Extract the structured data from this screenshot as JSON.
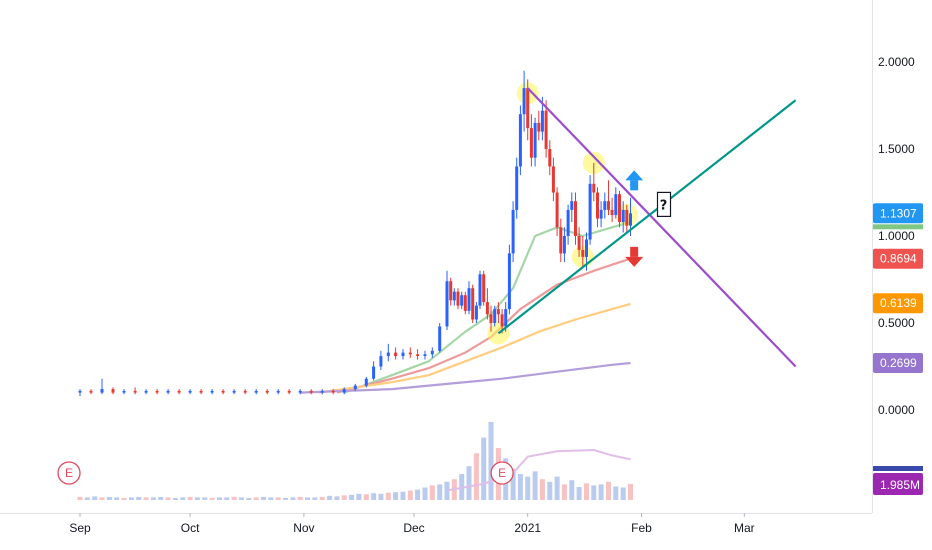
{
  "chart_data": {
    "type": "candlestick",
    "price_axis": {
      "ticks": [
        "2.0000",
        "1.5000",
        "1.0000",
        "0.5000",
        "0.0000"
      ],
      "tick_values": [
        2.0,
        1.5,
        1.0,
        0.5,
        0.0
      ],
      "ylim": [
        -0.35,
        2.2
      ]
    },
    "time_axis": {
      "ticks": [
        "Sep",
        "Oct",
        "Nov",
        "Dec",
        "2021",
        "Feb",
        "Mar"
      ],
      "tick_days": [
        0,
        30,
        61,
        91,
        122,
        153,
        181
      ]
    },
    "price_tags": [
      {
        "label": "1.1307",
        "value": 1.1307,
        "color": "#2196f3"
      },
      {
        "label": "0.8694",
        "value": 0.8694,
        "color": "#ef5350"
      },
      {
        "label": "0.6139",
        "value": 0.6139,
        "color": "#ff9800"
      },
      {
        "label": "0.2699",
        "value": 0.2699,
        "color": "#9575cd"
      }
    ],
    "volume_tag": {
      "label": "1.985M",
      "color": "#9c27b0"
    },
    "earnings_markers": [
      {
        "label": "E",
        "day": -3
      },
      {
        "label": "E",
        "day": 115
      }
    ],
    "annotation_box": {
      "label": "?"
    },
    "candles": [
      [
        0,
        0.1,
        0.12,
        0.08,
        0.11
      ],
      [
        3,
        0.11,
        0.12,
        0.09,
        0.1
      ],
      [
        6,
        0.1,
        0.18,
        0.09,
        0.12
      ],
      [
        9,
        0.12,
        0.13,
        0.09,
        0.1
      ],
      [
        12,
        0.1,
        0.12,
        0.09,
        0.11
      ],
      [
        15,
        0.11,
        0.13,
        0.09,
        0.1
      ],
      [
        18,
        0.1,
        0.12,
        0.09,
        0.11
      ],
      [
        21,
        0.11,
        0.12,
        0.09,
        0.1
      ],
      [
        24,
        0.1,
        0.12,
        0.09,
        0.11
      ],
      [
        27,
        0.11,
        0.12,
        0.09,
        0.1
      ],
      [
        30,
        0.1,
        0.12,
        0.09,
        0.11
      ],
      [
        33,
        0.11,
        0.12,
        0.09,
        0.1
      ],
      [
        36,
        0.1,
        0.12,
        0.09,
        0.11
      ],
      [
        39,
        0.11,
        0.12,
        0.09,
        0.1
      ],
      [
        42,
        0.1,
        0.12,
        0.09,
        0.11
      ],
      [
        45,
        0.11,
        0.12,
        0.09,
        0.1
      ],
      [
        48,
        0.1,
        0.12,
        0.09,
        0.11
      ],
      [
        51,
        0.11,
        0.12,
        0.09,
        0.1
      ],
      [
        54,
        0.1,
        0.12,
        0.09,
        0.11
      ],
      [
        57,
        0.11,
        0.12,
        0.09,
        0.1
      ],
      [
        60,
        0.1,
        0.12,
        0.09,
        0.11
      ],
      [
        63,
        0.11,
        0.12,
        0.09,
        0.1
      ],
      [
        66,
        0.1,
        0.12,
        0.09,
        0.11
      ],
      [
        69,
        0.11,
        0.12,
        0.09,
        0.1
      ],
      [
        72,
        0.1,
        0.13,
        0.09,
        0.12
      ],
      [
        75,
        0.12,
        0.15,
        0.11,
        0.14
      ],
      [
        78,
        0.14,
        0.19,
        0.13,
        0.18
      ],
      [
        80,
        0.18,
        0.28,
        0.17,
        0.25
      ],
      [
        82,
        0.25,
        0.34,
        0.23,
        0.31
      ],
      [
        84,
        0.31,
        0.38,
        0.28,
        0.33
      ],
      [
        86,
        0.33,
        0.36,
        0.29,
        0.31
      ],
      [
        88,
        0.31,
        0.35,
        0.29,
        0.33
      ],
      [
        90,
        0.33,
        0.36,
        0.3,
        0.32
      ],
      [
        92,
        0.32,
        0.35,
        0.29,
        0.31
      ],
      [
        94,
        0.31,
        0.34,
        0.29,
        0.32
      ],
      [
        96,
        0.32,
        0.36,
        0.3,
        0.34
      ],
      [
        98,
        0.34,
        0.5,
        0.33,
        0.48
      ],
      [
        100,
        0.48,
        0.8,
        0.46,
        0.74
      ],
      [
        101,
        0.74,
        0.76,
        0.6,
        0.63
      ],
      [
        102,
        0.63,
        0.7,
        0.6,
        0.68
      ],
      [
        103,
        0.68,
        0.7,
        0.58,
        0.6
      ],
      [
        104,
        0.6,
        0.68,
        0.58,
        0.66
      ],
      [
        105,
        0.66,
        0.68,
        0.55,
        0.57
      ],
      [
        106,
        0.57,
        0.74,
        0.55,
        0.7
      ],
      [
        107,
        0.7,
        0.72,
        0.5,
        0.52
      ],
      [
        108,
        0.52,
        0.62,
        0.5,
        0.6
      ],
      [
        109,
        0.6,
        0.8,
        0.58,
        0.78
      ],
      [
        110,
        0.78,
        0.8,
        0.6,
        0.62
      ],
      [
        111,
        0.62,
        0.7,
        0.52,
        0.55
      ],
      [
        112,
        0.55,
        0.6,
        0.45,
        0.5
      ],
      [
        113,
        0.5,
        0.6,
        0.48,
        0.58
      ],
      [
        114,
        0.58,
        0.62,
        0.5,
        0.55
      ],
      [
        115,
        0.55,
        0.58,
        0.44,
        0.48
      ],
      [
        116,
        0.48,
        0.62,
        0.45,
        0.58
      ],
      [
        117,
        0.58,
        0.95,
        0.55,
        0.9
      ],
      [
        118,
        0.9,
        1.2,
        0.85,
        1.15
      ],
      [
        119,
        1.15,
        1.45,
        1.1,
        1.4
      ],
      [
        120,
        1.4,
        1.75,
        1.35,
        1.7
      ],
      [
        121,
        1.7,
        1.95,
        1.6,
        1.85
      ],
      [
        122,
        1.85,
        1.9,
        1.55,
        1.62
      ],
      [
        123,
        1.62,
        1.7,
        1.4,
        1.45
      ],
      [
        124,
        1.45,
        1.68,
        1.4,
        1.65
      ],
      [
        125,
        1.65,
        1.72,
        1.55,
        1.6
      ],
      [
        126,
        1.6,
        1.8,
        1.55,
        1.72
      ],
      [
        127,
        1.72,
        1.78,
        1.45,
        1.5
      ],
      [
        128,
        1.5,
        1.55,
        1.35,
        1.4
      ],
      [
        129,
        1.4,
        1.45,
        1.2,
        1.25
      ],
      [
        130,
        1.25,
        1.28,
        1.0,
        1.05
      ],
      [
        131,
        1.05,
        1.1,
        0.85,
        0.9
      ],
      [
        132,
        0.9,
        1.05,
        0.85,
        1.0
      ],
      [
        133,
        1.0,
        1.18,
        0.95,
        1.15
      ],
      [
        134,
        1.15,
        1.25,
        1.08,
        1.2
      ],
      [
        135,
        1.2,
        1.25,
        0.95,
        1.0
      ],
      [
        136,
        1.0,
        1.05,
        0.88,
        0.92
      ],
      [
        137,
        0.92,
        1.0,
        0.82,
        0.88
      ],
      [
        138,
        0.88,
        1.02,
        0.8,
        0.98
      ],
      [
        139,
        0.98,
        1.35,
        0.95,
        1.3
      ],
      [
        140,
        1.3,
        1.42,
        1.2,
        1.25
      ],
      [
        141,
        1.25,
        1.28,
        1.05,
        1.1
      ],
      [
        142,
        1.1,
        1.2,
        1.05,
        1.15
      ],
      [
        143,
        1.15,
        1.25,
        1.1,
        1.2
      ],
      [
        144,
        1.2,
        1.32,
        1.12,
        1.15
      ],
      [
        145,
        1.15,
        1.22,
        1.08,
        1.12
      ],
      [
        146,
        1.12,
        1.28,
        1.1,
        1.24
      ],
      [
        147,
        1.24,
        1.26,
        1.05,
        1.08
      ],
      [
        148,
        1.08,
        1.2,
        1.02,
        1.15
      ],
      [
        149,
        1.15,
        1.18,
        1.02,
        1.06
      ],
      [
        150,
        1.06,
        1.22,
        1.0,
        1.13
      ]
    ],
    "moving_averages": [
      {
        "color": "#a5d6a7",
        "points": [
          [
            72,
            0.1
          ],
          [
            85,
            0.2
          ],
          [
            95,
            0.28
          ],
          [
            105,
            0.45
          ],
          [
            112,
            0.55
          ],
          [
            118,
            0.7
          ],
          [
            124,
            1.0
          ],
          [
            130,
            1.05
          ],
          [
            137,
            1.0
          ],
          [
            145,
            1.05
          ],
          [
            150,
            1.08
          ]
        ]
      },
      {
        "color": "#ef9a9a",
        "points": [
          [
            70,
            0.1
          ],
          [
            85,
            0.18
          ],
          [
            95,
            0.24
          ],
          [
            105,
            0.33
          ],
          [
            112,
            0.42
          ],
          [
            120,
            0.58
          ],
          [
            130,
            0.72
          ],
          [
            140,
            0.8
          ],
          [
            150,
            0.87
          ]
        ]
      },
      {
        "color": "#ffcc80",
        "points": [
          [
            65,
            0.1
          ],
          [
            85,
            0.16
          ],
          [
            95,
            0.2
          ],
          [
            105,
            0.28
          ],
          [
            115,
            0.36
          ],
          [
            125,
            0.45
          ],
          [
            135,
            0.52
          ],
          [
            145,
            0.58
          ],
          [
            150,
            0.61
          ]
        ]
      },
      {
        "color": "#b39ddb",
        "points": [
          [
            60,
            0.1
          ],
          [
            85,
            0.12
          ],
          [
            100,
            0.15
          ],
          [
            115,
            0.18
          ],
          [
            130,
            0.22
          ],
          [
            145,
            0.26
          ],
          [
            150,
            0.27
          ]
        ]
      }
    ],
    "trendlines": [
      {
        "color": "#9c4dcc",
        "from": [
          122,
          1.85
        ],
        "to": [
          195,
          0.25
        ]
      },
      {
        "color": "#009688",
        "from": [
          114,
          0.44
        ],
        "to": [
          195,
          1.78
        ]
      }
    ],
    "highlights": [
      [
        122,
        1.82
      ],
      [
        140,
        1.42
      ],
      [
        137,
        0.88
      ],
      [
        149,
        1.12
      ],
      [
        114,
        0.44
      ]
    ],
    "arrows": [
      {
        "day": 151,
        "value": 1.32,
        "direction": "up",
        "color": "#2196f3"
      },
      {
        "day": 151,
        "value": 0.88,
        "direction": "down",
        "color": "#e53935"
      }
    ],
    "volume_bars": {
      "start_day": 0,
      "step_day": 2,
      "values": [
        0.6,
        0.5,
        0.7,
        0.5,
        0.6,
        0.5,
        0.4,
        0.5,
        0.6,
        0.5,
        0.5,
        0.6,
        0.5,
        0.4,
        0.5,
        0.6,
        0.5,
        0.5,
        0.4,
        0.5,
        0.5,
        0.6,
        0.5,
        0.4,
        0.5,
        0.6,
        0.5,
        0.5,
        0.4,
        0.5,
        0.6,
        0.5,
        0.5,
        0.6,
        0.8,
        0.7,
        0.9,
        1.0,
        1.2,
        1.1,
        1.3,
        1.2,
        1.4,
        1.5,
        1.6,
        1.8,
        2.0,
        2.4,
        2.8,
        3.0,
        3.5,
        4.0,
        5.0,
        6.5,
        9.0,
        12.0,
        15.0,
        10.0,
        8.0,
        6.0,
        5.0,
        4.5,
        5.5,
        4.0,
        3.5,
        4.5,
        3.0,
        3.8,
        2.5,
        3.2,
        2.8,
        3.0,
        3.5,
        2.6,
        2.4,
        3.1
      ]
    },
    "volume_ma": [
      [
        100,
        0.7
      ],
      [
        110,
        1.2
      ],
      [
        118,
        2.0
      ],
      [
        122,
        3.2
      ],
      [
        130,
        3.6
      ],
      [
        140,
        3.7
      ],
      [
        145,
        3.3
      ],
      [
        150,
        3.0
      ]
    ]
  }
}
